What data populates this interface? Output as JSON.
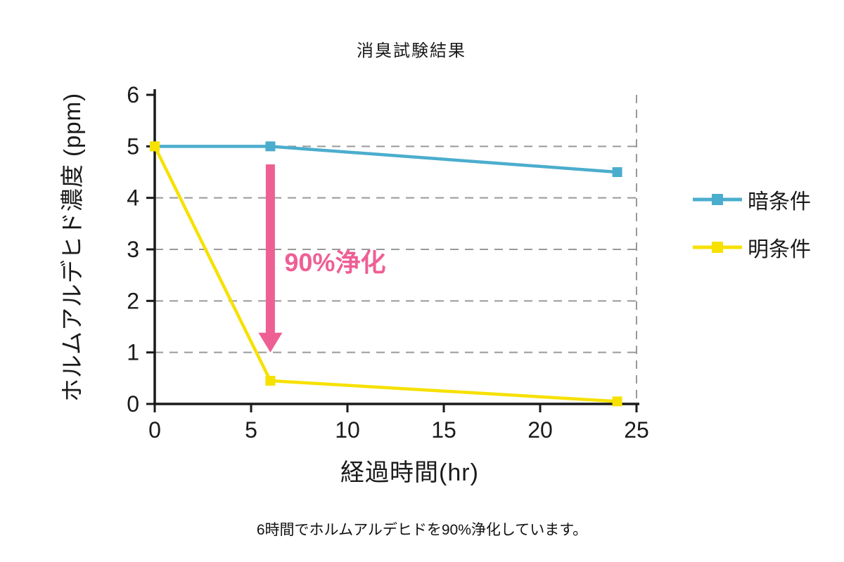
{
  "caption": "6時間でホルムアルデヒドを90%浄化しています。",
  "colors": {
    "axis": "#1a1a1a",
    "grid": "#999999",
    "text": "#1a1a1a",
    "annotation": "#ee5f94",
    "dark_series": "#4badcd",
    "light_series": "#f7e100"
  },
  "chart_data": {
    "type": "line",
    "title": "消臭試験結果",
    "xlabel": "経過時間(hr)",
    "ylabel": "ホルムアルデヒド濃度 (ppm)",
    "x": [
      0,
      6,
      24
    ],
    "series": [
      {
        "name": "暗条件",
        "color": "#4badcd",
        "values": [
          5.0,
          5.0,
          4.5
        ]
      },
      {
        "name": "明条件",
        "color": "#f7e100",
        "values": [
          5.0,
          0.45,
          0.05
        ]
      }
    ],
    "xlim": [
      0,
      25
    ],
    "ylim": [
      0,
      6
    ],
    "xticks": [
      0,
      5,
      10,
      15,
      20,
      25
    ],
    "yticks": [
      0,
      1,
      2,
      3,
      4,
      5,
      6
    ],
    "grid": "horizontal-dashed",
    "legend_position": "right-outside",
    "marker": "square",
    "annotation": {
      "label": "90%浄化",
      "x": 6,
      "from": 4.65,
      "to": 1.0,
      "color": "#ee5f94"
    }
  }
}
